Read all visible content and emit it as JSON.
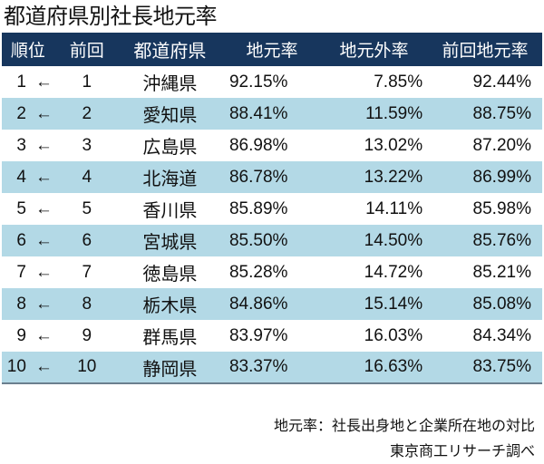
{
  "title": "都道府県別社長地元率",
  "table": {
    "header_bg": "#17365d",
    "stripe_bg": "#b3d9e6",
    "headers": {
      "rank": "順位",
      "previous": "前回",
      "prefecture": "都道府県",
      "local_rate": "地元率",
      "outside_rate": "地元外率",
      "previous_local_rate": "前回地元率"
    },
    "rows": [
      {
        "rank": "1",
        "change": "←",
        "previous": "1",
        "prefecture": "沖縄県",
        "local_rate": "92.15%",
        "outside_rate": "7.85%",
        "previous_local_rate": "92.44%"
      },
      {
        "rank": "2",
        "change": "←",
        "previous": "2",
        "prefecture": "愛知県",
        "local_rate": "88.41%",
        "outside_rate": "11.59%",
        "previous_local_rate": "88.75%"
      },
      {
        "rank": "3",
        "change": "←",
        "previous": "3",
        "prefecture": "広島県",
        "local_rate": "86.98%",
        "outside_rate": "13.02%",
        "previous_local_rate": "87.20%"
      },
      {
        "rank": "4",
        "change": "←",
        "previous": "4",
        "prefecture": "北海道",
        "local_rate": "86.78%",
        "outside_rate": "13.22%",
        "previous_local_rate": "86.99%"
      },
      {
        "rank": "5",
        "change": "←",
        "previous": "5",
        "prefecture": "香川県",
        "local_rate": "85.89%",
        "outside_rate": "14.11%",
        "previous_local_rate": "85.98%"
      },
      {
        "rank": "6",
        "change": "←",
        "previous": "6",
        "prefecture": "宮城県",
        "local_rate": "85.50%",
        "outside_rate": "14.50%",
        "previous_local_rate": "85.76%"
      },
      {
        "rank": "7",
        "change": "←",
        "previous": "7",
        "prefecture": "徳島県",
        "local_rate": "85.28%",
        "outside_rate": "14.72%",
        "previous_local_rate": "85.21%"
      },
      {
        "rank": "8",
        "change": "←",
        "previous": "8",
        "prefecture": "栃木県",
        "local_rate": "84.86%",
        "outside_rate": "15.14%",
        "previous_local_rate": "85.08%"
      },
      {
        "rank": "9",
        "change": "←",
        "previous": "9",
        "prefecture": "群馬県",
        "local_rate": "83.97%",
        "outside_rate": "16.03%",
        "previous_local_rate": "84.34%"
      },
      {
        "rank": "10",
        "change": "←",
        "previous": "10",
        "prefecture": "静岡県",
        "local_rate": "83.37%",
        "outside_rate": "16.63%",
        "previous_local_rate": "83.75%"
      }
    ]
  },
  "footnotes": {
    "definition": "地元率：社長出身地と企業所在地の対比",
    "source": "東京商工リサーチ調べ"
  }
}
